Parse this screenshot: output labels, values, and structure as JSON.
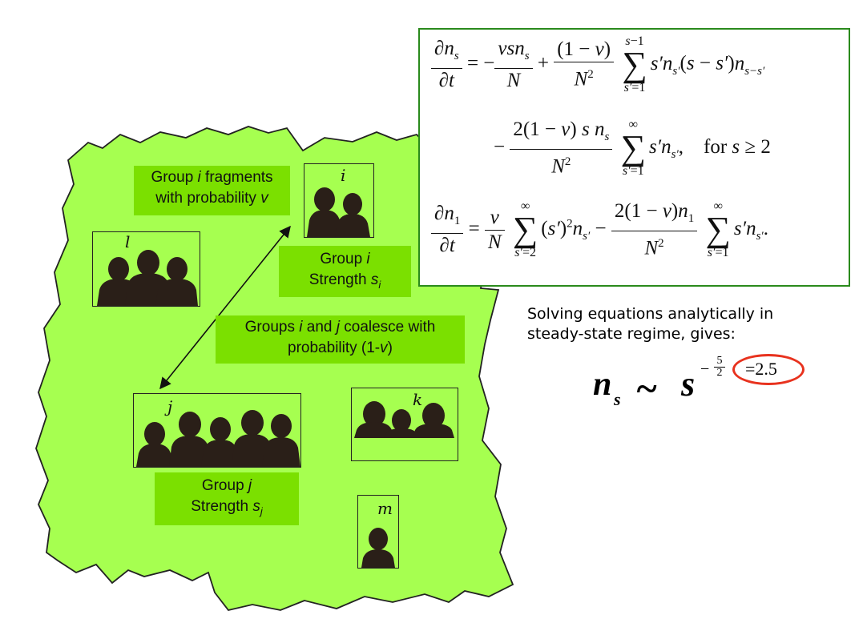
{
  "labels": {
    "fragment": {
      "pre": "Group ",
      "var": "i",
      "post": " fragments",
      "line2_pre": "with probability ",
      "line2_var": "v"
    },
    "group_i": {
      "pre": "Group ",
      "var": "i",
      "line2": "Strength ",
      "line2_sym": "s",
      "line2_sub": "i"
    },
    "coalesce": {
      "pre": "Groups ",
      "var1": "i",
      "mid": " and ",
      "var2": "j",
      "post": " coalesce with",
      "line2_pre": "probability (1-",
      "line2_var": "v",
      "line2_post": ")"
    },
    "group_j": {
      "pre": "Group ",
      "var": "j",
      "line2": "Strength ",
      "line2_sym": "s",
      "line2_sub": "j"
    }
  },
  "groups": {
    "i": "i",
    "l": "l",
    "j": "j",
    "k": "k",
    "m": "m"
  },
  "caption": {
    "line1": "Solving equations analytically in",
    "line2": "steady-state regime, gives:"
  },
  "result": {
    "lhs": "n",
    "lhs_sub": "s",
    "rel": "~",
    "base": "s",
    "exp_sign": "−",
    "exp_num": "5",
    "exp_den": "2",
    "highlight": "=2.5"
  },
  "colors": {
    "field": "#a6ff50",
    "label_bg": "#7be000",
    "silhouette": "#2a1f18",
    "eq_border": "#2a8a1c",
    "highlight_ring": "#e8321e"
  }
}
